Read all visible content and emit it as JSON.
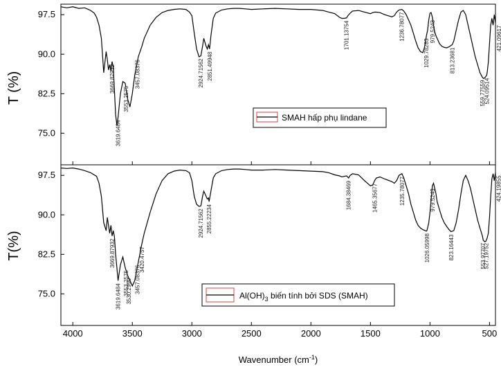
{
  "chart_data": [
    {
      "type": "line",
      "ylabel": "T (%)",
      "xlim": [
        4100,
        450
      ],
      "ylim": [
        69,
        99.5
      ],
      "yticks": [
        "97.5",
        "90.0",
        "82.5",
        "75.0"
      ],
      "ytick_values": [
        97.5,
        90.0,
        82.5,
        75.0
      ],
      "series": [
        {
          "name": "SMAH hấp phụ lindane",
          "color": "#000000",
          "x": [
            4100,
            4050,
            4000,
            3950,
            3900,
            3850,
            3820,
            3800,
            3780,
            3760,
            3740,
            3720,
            3710,
            3700,
            3690,
            3680,
            3670,
            3660,
            3650,
            3640,
            3630,
            3620,
            3600,
            3580,
            3560,
            3540,
            3520,
            3500,
            3480,
            3450,
            3420,
            3400,
            3350,
            3300,
            3250,
            3200,
            3150,
            3100,
            3050,
            3020,
            3000,
            2980,
            2960,
            2940,
            2924,
            2910,
            2900,
            2880,
            2870,
            2860,
            2851,
            2840,
            2820,
            2800,
            2750,
            2700,
            2650,
            2600,
            2550,
            2500,
            2400,
            2300,
            2200,
            2100,
            2000,
            1900,
            1850,
            1800,
            1760,
            1740,
            1720,
            1701,
            1690,
            1670,
            1650,
            1600,
            1550,
            1500,
            1480,
            1460,
            1420,
            1380,
            1320,
            1300,
            1280,
            1260,
            1236,
            1220,
            1200,
            1180,
            1160,
            1140,
            1120,
            1100,
            1080,
            1060,
            1050,
            1040,
            1030,
            1020,
            1010,
            1000,
            990,
            980,
            970,
            960,
            950,
            940,
            920,
            900,
            880,
            860,
            840,
            820,
            813,
            800,
            780,
            760,
            740,
            720,
            700,
            680,
            660,
            640,
            620,
            600,
            580,
            560,
            550,
            540,
            530,
            524,
            520,
            510,
            500,
            490,
            480,
            470,
            460,
            450
          ],
          "y": [
            99.0,
            98.8,
            99.0,
            98.7,
            98.8,
            98.3,
            97.8,
            97.0,
            95.5,
            93.0,
            86.5,
            90.5,
            89.0,
            87.0,
            88.0,
            86.8,
            88.6,
            87.5,
            83.0,
            78.5,
            76.5,
            78.0,
            82.5,
            84.8,
            84.5,
            81.5,
            80.0,
            82.5,
            86.0,
            89.5,
            91.5,
            93.0,
            95.5,
            97.0,
            97.9,
            98.3,
            98.5,
            98.6,
            98.5,
            98.0,
            97.3,
            94.0,
            91.0,
            89.5,
            89.7,
            91.5,
            93.0,
            91.5,
            91.0,
            91.8,
            91.0,
            93.5,
            96.8,
            97.8,
            98.4,
            98.6,
            98.7,
            98.7,
            98.6,
            98.5,
            98.6,
            98.7,
            98.6,
            98.5,
            98.5,
            98.3,
            98.0,
            97.7,
            97.0,
            96.8,
            96.8,
            96.9,
            97.3,
            97.8,
            98.2,
            98.3,
            98.0,
            97.7,
            97.9,
            98.0,
            97.9,
            97.5,
            97.1,
            97.3,
            98.0,
            98.4,
            98.5,
            98.2,
            97.5,
            96.5,
            95.5,
            94.0,
            92.5,
            91.2,
            90.5,
            90.3,
            91.0,
            92.0,
            93.5,
            94.5,
            96.5,
            97.8,
            97.9,
            97.0,
            95.5,
            94.2,
            93.5,
            93.0,
            92.0,
            91.5,
            91.3,
            91.2,
            91.4,
            91.7,
            91.8,
            92.5,
            94.5,
            96.5,
            98.0,
            98.3,
            97.5,
            95.5,
            93.5,
            91.5,
            89.5,
            88.0,
            86.5,
            85.6,
            85.4,
            85.5,
            85.8,
            86.0,
            86.5,
            88.5,
            92.0,
            95.5,
            96.8,
            95.5,
            97.5,
            96.0
          ]
        }
      ],
      "peak_labels": [
        "3669.87932",
        "3619.6484",
        "3553.2575",
        "3457.08376",
        "2924.71562",
        "2851.49948",
        "1701.13754",
        "1236.78077",
        "1029.78283",
        "979.5243",
        "813.23681",
        "559.77559",
        "524.09514",
        "421.09617"
      ],
      "peak_positions": [
        3669.87932,
        3619.6484,
        3553.2575,
        3457.08376,
        2924.71562,
        2851.49948,
        1701.13754,
        1236.78077,
        1029.78283,
        979.5243,
        813.23681,
        559.77559,
        524.09514,
        421.09617
      ],
      "legend_label": "SMAH hấp phụ lindane",
      "legend_position": "center-right"
    },
    {
      "type": "line",
      "ylabel": "T(%)",
      "xlabel": "Wavenumber (cm",
      "xlabel_sup": "-1",
      "xlabel_tail": ")",
      "xlim": [
        4100,
        450
      ],
      "ylim": [
        69,
        99.5
      ],
      "xticks": [
        "4000",
        "3500",
        "3000",
        "2500",
        "2000",
        "1500",
        "1000",
        "500"
      ],
      "xtick_values": [
        4000,
        3500,
        3000,
        2500,
        2000,
        1500,
        1000,
        500
      ],
      "yticks": [
        "97.5",
        "90.0",
        "82.5",
        "75.0"
      ],
      "ytick_values": [
        97.5,
        90.0,
        82.5,
        75.0
      ],
      "series": [
        {
          "name": "Al(OH)3 biến tính bởi SDS (SMAH)",
          "color": "#000000",
          "x": [
            4100,
            4050,
            4000,
            3950,
            3900,
            3850,
            3800,
            3780,
            3760,
            3740,
            3720,
            3710,
            3700,
            3690,
            3680,
            3670,
            3660,
            3650,
            3640,
            3630,
            3620,
            3600,
            3580,
            3560,
            3540,
            3520,
            3500,
            3480,
            3450,
            3420,
            3400,
            3350,
            3300,
            3250,
            3200,
            3150,
            3100,
            3050,
            3020,
            3000,
            2980,
            2960,
            2940,
            2924,
            2910,
            2900,
            2880,
            2870,
            2860,
            2855,
            2840,
            2820,
            2800,
            2750,
            2700,
            2650,
            2600,
            2550,
            2500,
            2400,
            2300,
            2200,
            2100,
            2000,
            1900,
            1850,
            1800,
            1760,
            1740,
            1720,
            1700,
            1684,
            1670,
            1650,
            1600,
            1550,
            1500,
            1480,
            1465,
            1450,
            1420,
            1380,
            1320,
            1300,
            1280,
            1260,
            1236,
            1220,
            1200,
            1180,
            1160,
            1140,
            1120,
            1100,
            1080,
            1060,
            1040,
            1030,
            1026,
            1020,
            1010,
            1000,
            990,
            980,
            970,
            960,
            950,
            940,
            920,
            900,
            880,
            860,
            840,
            823,
            800,
            780,
            760,
            740,
            720,
            700,
            680,
            660,
            640,
            620,
            600,
            580,
            560,
            553,
            540,
            530,
            527,
            520,
            510,
            500,
            490,
            480,
            470,
            460,
            450
          ],
          "y": [
            98.9,
            98.8,
            98.9,
            98.7,
            98.4,
            98.0,
            97.3,
            96.0,
            93.5,
            88.5,
            87.0,
            89.5,
            88.0,
            86.5,
            88.0,
            86.0,
            87.0,
            85.8,
            82.5,
            80.0,
            77.5,
            80.5,
            82.0,
            80.0,
            78.5,
            77.5,
            76.5,
            77.5,
            81.0,
            84.5,
            86.5,
            90.5,
            94.0,
            96.5,
            97.8,
            98.3,
            98.5,
            98.4,
            98.0,
            96.5,
            93.5,
            92.0,
            91.6,
            91.7,
            93.5,
            94.5,
            93.5,
            93.0,
            93.2,
            92.5,
            94.5,
            97.0,
            97.8,
            98.4,
            98.6,
            98.7,
            98.7,
            98.6,
            98.5,
            98.5,
            98.6,
            98.5,
            98.4,
            98.3,
            98.2,
            98.0,
            97.6,
            97.4,
            97.2,
            97.3,
            97.4,
            97.0,
            97.5,
            97.8,
            97.6,
            96.5,
            95.5,
            95.7,
            96.5,
            97.0,
            97.2,
            96.8,
            96.3,
            96.0,
            96.5,
            97.5,
            97.8,
            97.0,
            95.5,
            94.0,
            92.0,
            90.5,
            89.0,
            88.0,
            87.5,
            87.2,
            87.0,
            86.9,
            87.0,
            87.5,
            88.5,
            90.5,
            93.0,
            95.5,
            96.0,
            95.0,
            94.0,
            92.5,
            91.0,
            89.5,
            88.5,
            87.8,
            87.2,
            86.8,
            87.0,
            88.5,
            91.0,
            94.0,
            96.5,
            97.5,
            96.5,
            95.0,
            93.0,
            91.0,
            89.0,
            87.5,
            86.0,
            85.2,
            84.9,
            85.0,
            85.2,
            85.6,
            86.5,
            89.5,
            93.5,
            96.8,
            97.8,
            96.5,
            98.0
          ]
        }
      ],
      "peak_labels": [
        "3669.87932",
        "3619.6484",
        "3553.2575",
        "3530.2999",
        "3457.08376",
        "3420.4757",
        "2924.71562",
        "2855.22234",
        "1684.38469",
        "1465.35677",
        "1235.78077",
        "1026.05998",
        "979.5243",
        "823.16443",
        "553.97707",
        "527.19752",
        "424.19855"
      ],
      "peak_positions": [
        3669.87932,
        3619.6484,
        3553.2575,
        3530.2999,
        3457.08376,
        3420.4757,
        2924.71562,
        2855.22234,
        1684.38469,
        1465.35677,
        1235.78077,
        1026.05998,
        979.5243,
        823.16443,
        553.97707,
        527.19752,
        424.19855
      ],
      "legend_label_main": "Al(OH)",
      "legend_label_sub": "3",
      "legend_label_tail": " biến tính bởi SDS (SMAH)",
      "legend_position": "bottom-center"
    }
  ]
}
